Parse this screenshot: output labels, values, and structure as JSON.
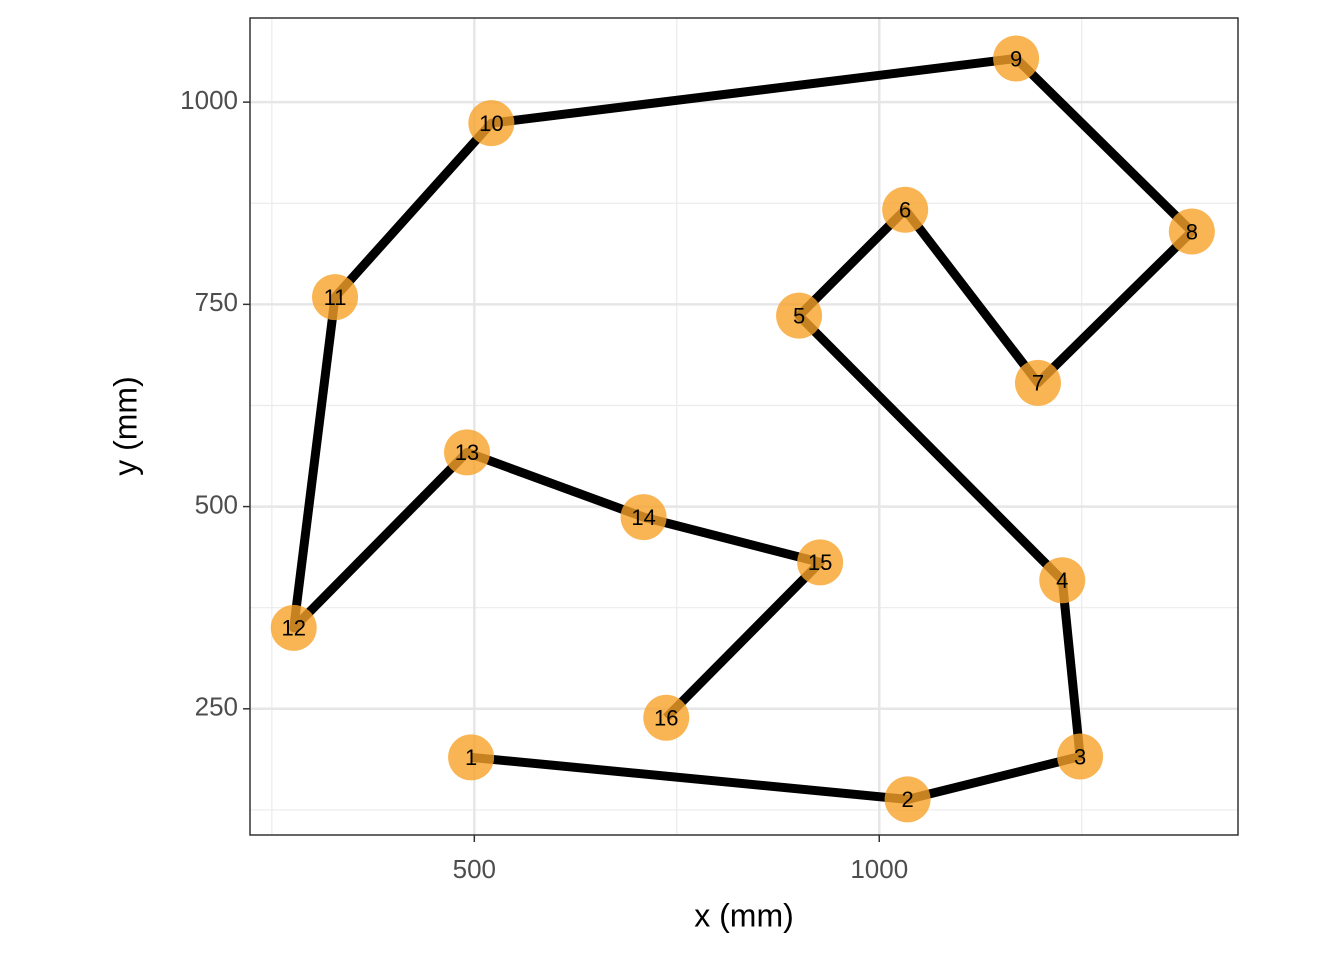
{
  "chart_data": {
    "type": "path_scatter",
    "x_label": "x (mm)",
    "y_label": "y (mm)",
    "x": [
      496,
      1035,
      1248,
      1226,
      901,
      1032,
      1196,
      1386,
      1169,
      521,
      328,
      277,
      491,
      709,
      927,
      737
    ],
    "y": [
      190,
      138,
      191,
      409,
      736,
      867,
      653,
      840,
      1054,
      974,
      759,
      350,
      567,
      487,
      431,
      239
    ],
    "labels": [
      1,
      2,
      3,
      4,
      5,
      6,
      7,
      8,
      9,
      10,
      11,
      12,
      13,
      14,
      15,
      16
    ],
    "point_color": "#f7a229",
    "line_color": "#000000",
    "xlim": [
      223,
      1443
    ],
    "ylim": [
      94,
      1104
    ],
    "xticks": [
      500,
      1000
    ],
    "yticks": [
      250,
      500,
      750,
      1000
    ],
    "x_minor_ticks": [
      250,
      750,
      1250
    ],
    "y_minor_ticks": [
      125,
      375,
      625,
      875
    ],
    "grid": true
  }
}
